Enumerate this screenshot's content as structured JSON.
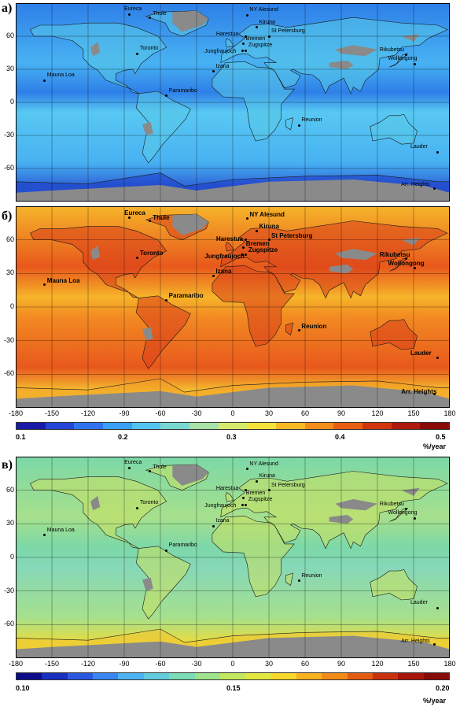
{
  "panels": [
    {
      "letter": "a)",
      "scheme": "blue"
    },
    {
      "letter": "б)",
      "scheme": "red"
    },
    {
      "letter": "в)",
      "scheme": "green"
    }
  ],
  "lat_ticks": [
    "60",
    "30",
    "0",
    "-30",
    "-60"
  ],
  "lon_ticks": [
    "-180",
    "-150",
    "-120",
    "-90",
    "-60",
    "-30",
    "0",
    "30",
    "60",
    "90",
    "120",
    "150",
    "180"
  ],
  "colorbar1": {
    "labels": [
      "0.1",
      "0.2",
      "0.3",
      "0.4",
      "0.5"
    ],
    "unit": "%/year",
    "colors": [
      "#1a1aa8",
      "#2546d6",
      "#2f74ee",
      "#39a0f5",
      "#53c4f0",
      "#7ad6d0",
      "#a7e2a6",
      "#d6ea6c",
      "#f7e43a",
      "#f9b924",
      "#f48c1a",
      "#e85f12",
      "#d2350e",
      "#b0180c",
      "#8a0a08"
    ]
  },
  "colorbar2": {
    "labels": [
      "0.10",
      "0.15",
      "0.20"
    ],
    "unit": "%/year",
    "colors": [
      "#0c0c8a",
      "#1a2ec0",
      "#2a58e0",
      "#3a86f0",
      "#4cb2f2",
      "#62ccdc",
      "#7cdcb6",
      "#9ee48a",
      "#c2e860",
      "#e2e840",
      "#f8d82a",
      "#f8b220",
      "#f28a18",
      "#e45c12",
      "#ca320e",
      "#a8140a",
      "#860a08"
    ]
  },
  "stations": [
    {
      "name": "Eureca",
      "lon": -86,
      "lat": 80
    },
    {
      "name": "Thule",
      "lon": -69,
      "lat": 77
    },
    {
      "name": "NY Alesund",
      "lon": 12,
      "lat": 79
    },
    {
      "name": "Kiruna",
      "lon": 20,
      "lat": 68
    },
    {
      "name": "Harestua",
      "lon": 11,
      "lat": 60
    },
    {
      "name": "St Petersburg",
      "lon": 30,
      "lat": 60
    },
    {
      "name": "Bremen",
      "lon": 9,
      "lat": 53
    },
    {
      "name": "Jungfraujoch",
      "lon": 8,
      "lat": 47
    },
    {
      "name": "Zugspitze",
      "lon": 11,
      "lat": 47
    },
    {
      "name": "Toronto",
      "lon": -79,
      "lat": 44
    },
    {
      "name": "Rikubetsu",
      "lon": 144,
      "lat": 43
    },
    {
      "name": "Wollongong",
      "lon": 151,
      "lat": 35
    },
    {
      "name": "Izana",
      "lon": -16,
      "lat": 28
    },
    {
      "name": "Mauna Loa",
      "lon": -156,
      "lat": 20
    },
    {
      "name": "Paramaribo",
      "lon": -55,
      "lat": 6
    },
    {
      "name": "Reunion",
      "lon": 55,
      "lat": -21
    },
    {
      "name": "Lauder",
      "lon": 170,
      "lat": -45
    },
    {
      "name": "Arr. Heights",
      "lon": 167,
      "lat": -78
    }
  ]
}
